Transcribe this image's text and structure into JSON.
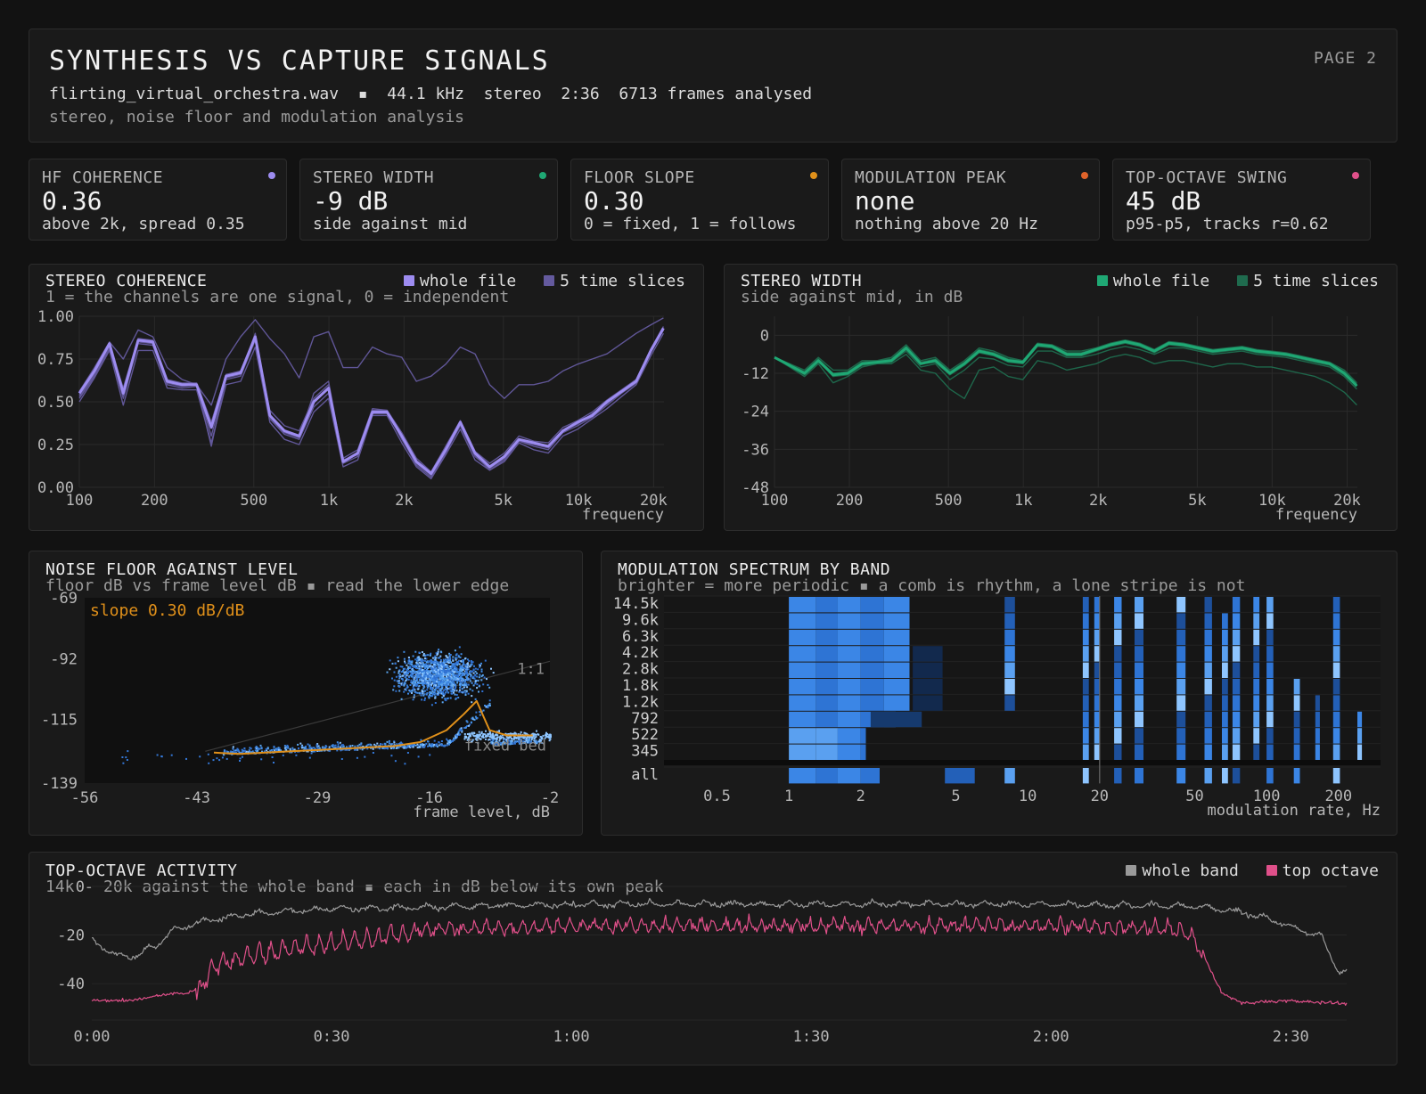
{
  "header": {
    "title": "SYNTHESIS VS CAPTURE SIGNALS",
    "page": "PAGE 2",
    "meta": "flirting_virtual_orchestra.wav  ▪  44.1 kHz  stereo  2:36  6713 frames analysed",
    "subtitle": "stereo, noise floor and modulation analysis"
  },
  "stats": [
    {
      "label": "HF COHERENCE",
      "value": "0.36",
      "note": "above 2k, spread 0.35",
      "color": "#9d8cf0"
    },
    {
      "label": "STEREO WIDTH",
      "value": "-9 dB",
      "note": "side against mid",
      "color": "#1fa874"
    },
    {
      "label": "FLOOR SLOPE",
      "value": "0.30",
      "note": "0 = fixed, 1 = follows",
      "color": "#e0901a"
    },
    {
      "label": "MODULATION PEAK",
      "value": "none",
      "note": "nothing above 20 Hz",
      "color": "#e0632a"
    },
    {
      "label": "TOP-OCTAVE SWING",
      "value": "45 dB",
      "note": "p95-p5, tracks r=0.62",
      "color": "#e0508a"
    }
  ],
  "coherence": {
    "title": "STEREO COHERENCE",
    "subtitle": "1 = the channels are one signal, 0 = independent",
    "legend": [
      {
        "label": "whole file",
        "color": "#9d8cf0"
      },
      {
        "label": "5 time slices",
        "color": "#645a9e"
      }
    ],
    "xlabel": "frequency",
    "yticks": [
      "1.00",
      "0.75",
      "0.50",
      "0.25",
      "0.00"
    ],
    "xticks": [
      "100",
      "200",
      "500",
      "1k",
      "2k",
      "5k",
      "10k",
      "20k"
    ]
  },
  "width": {
    "title": "STEREO WIDTH",
    "subtitle": "side against mid, in dB",
    "legend": [
      {
        "label": "whole file",
        "color": "#1fa874"
      },
      {
        "label": "5 time slices",
        "color": "#1f6b4e"
      }
    ],
    "xlabel": "frequency",
    "yticks": [
      "0",
      "-12",
      "-24",
      "-36",
      "-48"
    ],
    "xticks": [
      "100",
      "200",
      "500",
      "1k",
      "2k",
      "5k",
      "10k",
      "20k"
    ]
  },
  "floor": {
    "title": "NOISE FLOOR AGAINST LEVEL",
    "subtitle": "floor dB vs frame level dB ▪ read the lower edge",
    "annotation": "slope 0.30 dB/dB",
    "ref_label": "1:1",
    "bed_label": "fixed bed",
    "xlabel": "frame level, dB",
    "yticks": [
      "-69",
      "-92",
      "-115",
      "-139"
    ],
    "xticks": [
      "-56",
      "-43",
      "-29",
      "-16",
      "-2"
    ]
  },
  "modulation": {
    "title": "MODULATION SPECTRUM BY BAND",
    "subtitle": "brighter = more periodic ▪ a comb is rhythm, a lone stripe is not",
    "xlabel": "modulation rate, Hz",
    "bands": [
      "14.5k",
      "9.6k",
      "6.3k",
      "4.2k",
      "2.8k",
      "1.8k",
      "1.2k",
      "792",
      "522",
      "345",
      "all"
    ],
    "xticks": [
      "0.5",
      "1",
      "2",
      "5",
      "10",
      "20",
      "50",
      "100",
      "200"
    ]
  },
  "topoct": {
    "title": "TOP-OCTAVE ACTIVITY",
    "subtitle": "14k - 20k against the whole band ▪ each in dB below its own peak",
    "legend": [
      {
        "label": "whole band",
        "color": "#9a9a9a"
      },
      {
        "label": "top octave",
        "color": "#e0508a"
      }
    ],
    "yticks": [
      "0",
      "-20",
      "-40"
    ],
    "xticks": [
      "0:00",
      "0:30",
      "1:00",
      "1:30",
      "2:00",
      "2:30"
    ]
  },
  "chart_data": [
    {
      "type": "line",
      "title": "STEREO COHERENCE",
      "xlabel": "frequency",
      "xscale": "log",
      "xlim": [
        100,
        22000
      ],
      "ylim": [
        0,
        1
      ],
      "x": [
        100,
        115,
        132,
        150,
        172,
        197,
        225,
        258,
        295,
        338,
        387,
        443,
        507,
        580,
        664,
        760,
        870,
        996,
        1140,
        1305,
        1494,
        1710,
        1958,
        2241,
        2566,
        2937,
        3362,
        3849,
        4406,
        5044,
        5774,
        6610,
        7567,
        8662,
        9916,
        11351,
        12994,
        14875,
        17028,
        19493,
        21900
      ],
      "series": [
        {
          "name": "whole file",
          "values": [
            0.55,
            0.68,
            0.84,
            0.55,
            0.86,
            0.85,
            0.62,
            0.6,
            0.6,
            0.35,
            0.65,
            0.67,
            0.88,
            0.42,
            0.33,
            0.3,
            0.5,
            0.58,
            0.15,
            0.2,
            0.44,
            0.44,
            0.3,
            0.15,
            0.08,
            0.22,
            0.38,
            0.2,
            0.12,
            0.18,
            0.28,
            0.26,
            0.24,
            0.33,
            0.38,
            0.42,
            0.5,
            0.56,
            0.62,
            0.8,
            0.93
          ]
        },
        {
          "name": "5 time slices",
          "values": [
            0.56,
            0.7,
            0.85,
            0.75,
            0.92,
            0.88,
            0.7,
            0.63,
            0.6,
            0.48,
            0.75,
            0.88,
            0.98,
            0.87,
            0.78,
            0.64,
            0.88,
            0.91,
            0.7,
            0.7,
            0.82,
            0.78,
            0.76,
            0.62,
            0.65,
            0.72,
            0.82,
            0.78,
            0.6,
            0.52,
            0.6,
            0.6,
            0.62,
            0.68,
            0.72,
            0.75,
            0.78,
            0.84,
            0.9,
            0.95,
            0.99
          ]
        },
        {
          "name": "5 time slices",
          "values": [
            0.5,
            0.64,
            0.8,
            0.48,
            0.8,
            0.8,
            0.58,
            0.57,
            0.57,
            0.26,
            0.6,
            0.62,
            0.82,
            0.38,
            0.28,
            0.25,
            0.44,
            0.52,
            0.12,
            0.16,
            0.42,
            0.42,
            0.26,
            0.12,
            0.05,
            0.19,
            0.34,
            0.16,
            0.1,
            0.15,
            0.26,
            0.22,
            0.2,
            0.3,
            0.34,
            0.4,
            0.46,
            0.53,
            0.6,
            0.77,
            0.9
          ]
        },
        {
          "name": "5 time slices",
          "values": [
            0.53,
            0.66,
            0.82,
            0.52,
            0.84,
            0.83,
            0.6,
            0.58,
            0.59,
            0.3,
            0.63,
            0.65,
            0.86,
            0.4,
            0.31,
            0.28,
            0.47,
            0.55,
            0.14,
            0.18,
            0.45,
            0.45,
            0.28,
            0.14,
            0.07,
            0.21,
            0.36,
            0.18,
            0.11,
            0.17,
            0.27,
            0.24,
            0.22,
            0.32,
            0.36,
            0.41,
            0.48,
            0.55,
            0.61,
            0.79,
            0.92
          ]
        },
        {
          "name": "5 time slices",
          "values": [
            0.54,
            0.67,
            0.83,
            0.58,
            0.87,
            0.86,
            0.63,
            0.61,
            0.61,
            0.38,
            0.66,
            0.68,
            0.87,
            0.45,
            0.36,
            0.33,
            0.52,
            0.6,
            0.17,
            0.22,
            0.46,
            0.45,
            0.32,
            0.17,
            0.09,
            0.24,
            0.39,
            0.21,
            0.14,
            0.2,
            0.3,
            0.27,
            0.26,
            0.35,
            0.39,
            0.44,
            0.51,
            0.57,
            0.63,
            0.81,
            0.94
          ]
        },
        {
          "name": "5 time slices",
          "values": [
            0.52,
            0.65,
            0.81,
            0.54,
            0.85,
            0.84,
            0.61,
            0.59,
            0.6,
            0.24,
            0.64,
            0.66,
            0.9,
            0.41,
            0.32,
            0.29,
            0.55,
            0.62,
            0.16,
            0.19,
            0.43,
            0.43,
            0.29,
            0.13,
            0.06,
            0.2,
            0.37,
            0.19,
            0.1,
            0.16,
            0.27,
            0.25,
            0.23,
            0.33,
            0.37,
            0.43,
            0.49,
            0.56,
            0.62,
            0.8,
            0.92
          ]
        }
      ]
    },
    {
      "type": "line",
      "title": "STEREO WIDTH",
      "xlabel": "frequency",
      "xscale": "log",
      "xlim": [
        100,
        22000
      ],
      "ylim": [
        -48,
        6
      ],
      "x": [
        100,
        115,
        132,
        150,
        172,
        197,
        225,
        258,
        295,
        338,
        387,
        443,
        507,
        580,
        664,
        760,
        870,
        996,
        1140,
        1305,
        1494,
        1710,
        1958,
        2241,
        2566,
        2937,
        3362,
        3849,
        4406,
        5044,
        5774,
        6610,
        7567,
        8662,
        9916,
        11351,
        12994,
        14875,
        17028,
        19493,
        21900
      ],
      "series": [
        {
          "name": "whole file",
          "values": [
            -7,
            -9.5,
            -12,
            -8,
            -12.5,
            -12,
            -9,
            -8.5,
            -8,
            -4,
            -9,
            -8,
            -12,
            -9,
            -5,
            -6,
            -8,
            -8.5,
            -3,
            -3.5,
            -6,
            -6,
            -4.5,
            -3,
            -2,
            -3,
            -5,
            -2.5,
            -3,
            -4,
            -5,
            -4.5,
            -4,
            -5,
            -5.5,
            -6,
            -7,
            -8,
            -9,
            -12,
            -16
          ]
        },
        {
          "name": "5 time slices",
          "values": [
            -7,
            -9,
            -11,
            -7,
            -11,
            -11,
            -8,
            -8,
            -7,
            -3,
            -8,
            -7,
            -11,
            -8,
            -4,
            -5,
            -7,
            -8,
            -2.5,
            -3,
            -5,
            -5,
            -4,
            -2.5,
            -1.5,
            -2.5,
            -4.5,
            -2,
            -2.5,
            -3.5,
            -4.5,
            -4,
            -3.5,
            -4.5,
            -5,
            -5.5,
            -6.5,
            -7.5,
            -8.5,
            -11,
            -15
          ]
        },
        {
          "name": "5 time slices",
          "values": [
            -7,
            -10,
            -13,
            -9,
            -15,
            -13,
            -10,
            -9,
            -9,
            -6,
            -11,
            -12,
            -17,
            -20,
            -11,
            -10,
            -13,
            -14,
            -8,
            -9,
            -11,
            -10,
            -9,
            -7,
            -6,
            -7,
            -9,
            -8,
            -8,
            -9,
            -10,
            -9,
            -9,
            -10,
            -10,
            -11,
            -12,
            -13,
            -15,
            -18,
            -22
          ]
        },
        {
          "name": "5 time slices",
          "values": [
            -7,
            -10,
            -12,
            -8,
            -13,
            -12.5,
            -9.5,
            -9,
            -8.5,
            -5,
            -10,
            -9,
            -14,
            -11,
            -7,
            -7.5,
            -9.5,
            -10,
            -5,
            -5,
            -7,
            -7,
            -6,
            -4.5,
            -3.5,
            -4.5,
            -6,
            -4,
            -4,
            -5,
            -6,
            -5.5,
            -5,
            -6,
            -6.5,
            -7,
            -8,
            -9,
            -10,
            -13,
            -17
          ]
        },
        {
          "name": "5 time slices",
          "values": [
            -7,
            -9.5,
            -12.5,
            -8.5,
            -12,
            -12,
            -9,
            -8.5,
            -8,
            -4.5,
            -9,
            -8.5,
            -12.5,
            -9.5,
            -5.5,
            -6.5,
            -8.5,
            -9,
            -3.5,
            -4,
            -6.5,
            -6.5,
            -5,
            -3.5,
            -2.5,
            -3.5,
            -5.5,
            -3,
            -3.5,
            -4.5,
            -5.5,
            -5,
            -4.5,
            -5.5,
            -6,
            -6.5,
            -7.5,
            -8.5,
            -9.5,
            -12.5,
            -16
          ]
        },
        {
          "name": "5 time slices",
          "values": [
            -7,
            -9,
            -11.5,
            -7.5,
            -12,
            -11.5,
            -8.5,
            -8,
            -7.5,
            -3.5,
            -8.5,
            -7.5,
            -11.5,
            -8.5,
            -4.5,
            -5.5,
            -7.5,
            -8,
            -2.8,
            -3.2,
            -5.5,
            -5.5,
            -4.2,
            -2.8,
            -1.8,
            -2.8,
            -4.8,
            -2.2,
            -2.8,
            -3.8,
            -4.8,
            -4.2,
            -3.8,
            -4.8,
            -5.2,
            -5.8,
            -6.8,
            -7.8,
            -8.8,
            -11.5,
            -15.5
          ]
        }
      ]
    },
    {
      "type": "scatter",
      "title": "NOISE FLOOR AGAINST LEVEL",
      "xlabel": "frame level, dB",
      "ylabel": "floor dB",
      "xlim": [
        -56,
        -2
      ],
      "ylim": [
        -139,
        -69
      ],
      "lower_edge": {
        "x": [
          -41,
          -38,
          -35,
          -32,
          -29,
          -26,
          -23,
          -20,
          -17,
          -14,
          -12,
          -10.5,
          -9,
          -7,
          -5,
          -4
        ],
        "y": [
          -127.5,
          -128,
          -127.5,
          -127,
          -126.5,
          -126,
          -125.5,
          -125,
          -123.5,
          -119,
          -113,
          -108,
          -119,
          -121,
          -121,
          -121
        ]
      },
      "slope": 0.3
    },
    {
      "type": "heatmap",
      "title": "MODULATION SPECTRUM BY BAND",
      "xlabel": "modulation rate, Hz",
      "xscale": "log",
      "xlim": [
        0.3,
        300
      ],
      "rows": [
        "14.5k",
        "9.6k",
        "6.3k",
        "4.2k",
        "2.8k",
        "1.8k",
        "1.2k",
        "792",
        "522",
        "345",
        "all"
      ],
      "strong_rates": [
        1,
        1.5,
        2,
        2.5,
        4.5,
        8,
        17,
        19,
        23,
        28,
        42,
        55,
        72,
        88,
        100,
        130,
        190
      ]
    },
    {
      "type": "line",
      "title": "TOP-OCTAVE ACTIVITY",
      "xlabel": "time",
      "ylabel": "dB below own peak",
      "xlim": [
        0,
        157
      ],
      "ylim": [
        -55,
        0
      ],
      "series": [
        {
          "name": "whole band",
          "keyframes_t": [
            0,
            3,
            5,
            8,
            10,
            14,
            20,
            30,
            60,
            90,
            120,
            138,
            145,
            150,
            154,
            156
          ],
          "keyframes_v": [
            -21,
            -27,
            -28,
            -23,
            -17,
            -13,
            -10,
            -8,
            -6,
            -6,
            -6,
            -7,
            -10,
            -15,
            -20,
            -34
          ]
        },
        {
          "name": "top octave",
          "keyframes_t": [
            0,
            5,
            8,
            10,
            12,
            13,
            14,
            16,
            20,
            25,
            30,
            40,
            60,
            90,
            120,
            135,
            138,
            140,
            141.5,
            144,
            150,
            156
          ],
          "keyframes_v": [
            -47,
            -47,
            -45,
            -44,
            -44,
            -42,
            -34,
            -27,
            -24,
            -21,
            -19,
            -15,
            -13,
            -13,
            -13,
            -14,
            -18,
            -35,
            -44,
            -48,
            -47,
            -48
          ]
        }
      ]
    }
  ]
}
